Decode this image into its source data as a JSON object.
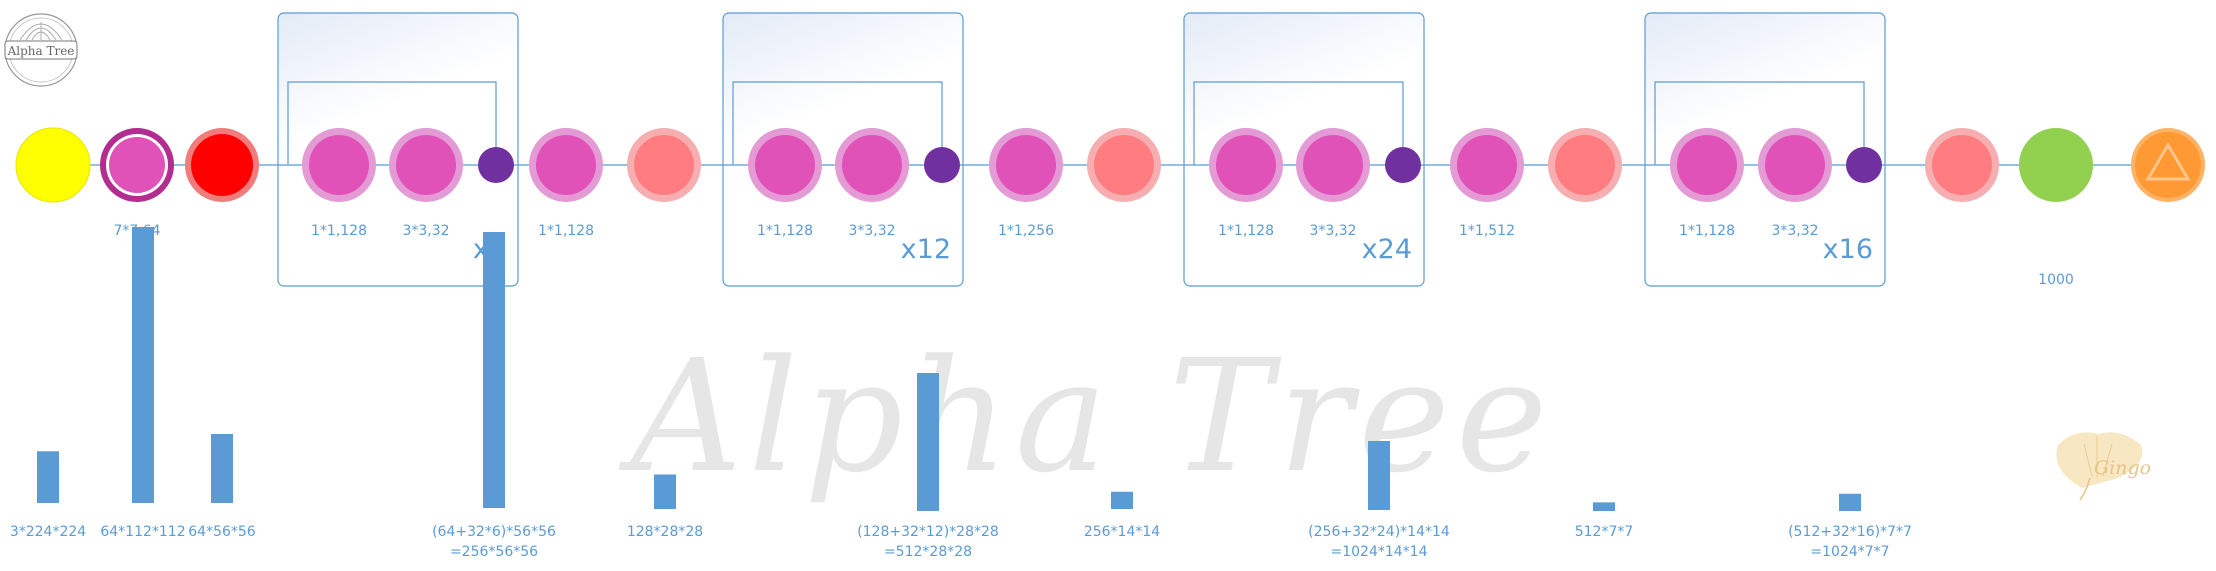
{
  "logo": {
    "text": "Alpha Tree"
  },
  "watermark": {
    "text": "Alpha Tree"
  },
  "signature": {
    "text": "Gingo"
  },
  "colors": {
    "line": "#5b9bd5",
    "bar": "#5b9bd5",
    "input": "#ffff00",
    "conv": "#e052b8",
    "conv_ring": "#e49ad5",
    "stem_ring": "#b22d8f",
    "pool": "#ff0000",
    "concat": "#7030a0",
    "transition": "#ff7c80",
    "transition_ring": "#f7aeb0",
    "fc": "#92d050",
    "softmax": "#ff9933"
  },
  "nodes": [
    {
      "kind": "input"
    },
    {
      "kind": "stem",
      "label": "7*7,64"
    },
    {
      "kind": "pool"
    },
    {
      "kind": "conv",
      "label": "1*1,128"
    },
    {
      "kind": "conv",
      "label": "3*3,32"
    },
    {
      "kind": "concat"
    },
    {
      "kind": "conv",
      "label": "1*1,128"
    },
    {
      "kind": "transition"
    },
    {
      "kind": "conv",
      "label": "1*1,128"
    },
    {
      "kind": "conv",
      "label": "3*3,32"
    },
    {
      "kind": "concat"
    },
    {
      "kind": "conv",
      "label": "1*1,256"
    },
    {
      "kind": "transition"
    },
    {
      "kind": "conv",
      "label": "1*1,128"
    },
    {
      "kind": "conv",
      "label": "3*3,32"
    },
    {
      "kind": "concat"
    },
    {
      "kind": "conv",
      "label": "1*1,512"
    },
    {
      "kind": "transition"
    },
    {
      "kind": "conv",
      "label": "1*1,128"
    },
    {
      "kind": "conv",
      "label": "3*3,32"
    },
    {
      "kind": "concat"
    },
    {
      "kind": "transition"
    },
    {
      "kind": "fc",
      "label": "1000"
    },
    {
      "kind": "softmax"
    }
  ],
  "blocks": [
    {
      "repeat": "x6"
    },
    {
      "repeat": "x12"
    },
    {
      "repeat": "x24"
    },
    {
      "repeat": "x16"
    }
  ],
  "chart_data": {
    "type": "bar",
    "categories": [
      "3*224*224",
      "64*112*112",
      "64*56*56",
      "(64+32*6)*56*56\n=256*56*56",
      "128*28*28",
      "(128+32*12)*28*28\n=512*28*28",
      "256*14*14",
      "(256+32*24)*14*14\n=1024*14*14",
      "512*7*7",
      "(512+32*16)*7*7\n=1024*7*7"
    ],
    "values": [
      150528,
      802816,
      200704,
      802816,
      100352,
      401408,
      50176,
      200704,
      25088,
      50176
    ]
  }
}
